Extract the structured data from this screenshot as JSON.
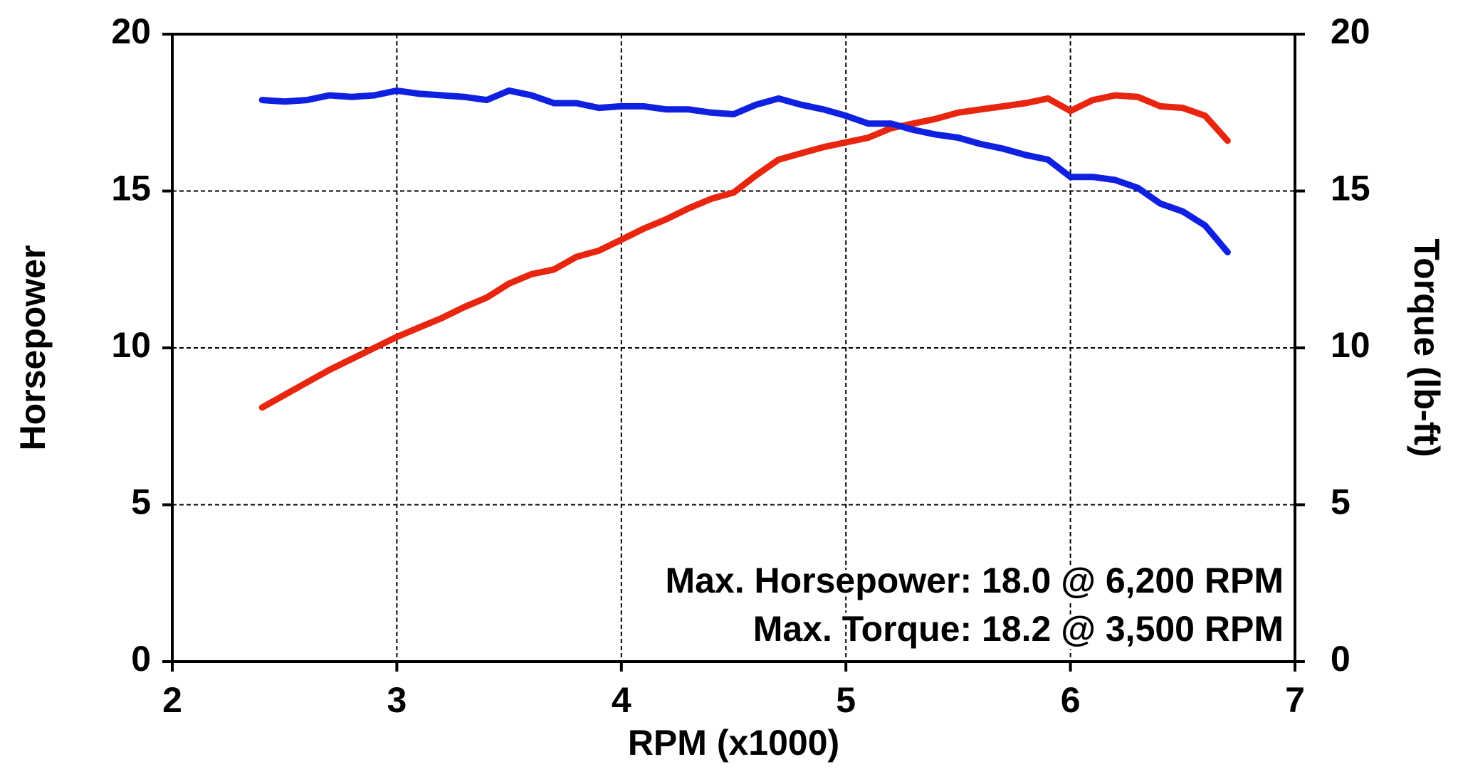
{
  "chart_data": {
    "type": "line",
    "x_label": "RPM (x1000)",
    "y_label": "Horsepower",
    "y2_label": "Torque (lb-ft)",
    "annotations": [
      "Max. Horsepower: 18.0 @ 6,200 RPM",
      "Max. Torque: 18.2 @ 3,500 RPM"
    ],
    "x": [
      2.4,
      2.5,
      2.6,
      2.7,
      2.8,
      2.9,
      3.0,
      3.1,
      3.2,
      3.3,
      3.4,
      3.5,
      3.6,
      3.7,
      3.8,
      3.9,
      4.0,
      4.1,
      4.2,
      4.3,
      4.4,
      4.5,
      4.6,
      4.7,
      4.8,
      4.9,
      5.0,
      5.1,
      5.2,
      5.3,
      5.4,
      5.5,
      5.6,
      5.7,
      5.8,
      5.9,
      6.0,
      6.1,
      6.2,
      6.3,
      6.4,
      6.5,
      6.6,
      6.7
    ],
    "series": [
      {
        "name": "Horsepower",
        "color": "#e8260f",
        "values": [
          8.1,
          8.5,
          8.9,
          9.3,
          9.65,
          10.0,
          10.35,
          10.65,
          10.95,
          11.3,
          11.6,
          12.05,
          12.35,
          12.5,
          12.9,
          13.1,
          13.45,
          13.8,
          14.1,
          14.45,
          14.75,
          14.95,
          15.5,
          16.0,
          16.2,
          16.4,
          16.55,
          16.7,
          17.0,
          17.15,
          17.3,
          17.5,
          17.6,
          17.7,
          17.8,
          17.95,
          17.55,
          17.9,
          18.05,
          18.0,
          17.7,
          17.65,
          17.4,
          16.6
        ]
      },
      {
        "name": "Torque",
        "color": "#1020e0",
        "axis": "y2",
        "values": [
          17.9,
          17.85,
          17.9,
          18.05,
          18.0,
          18.05,
          18.2,
          18.1,
          18.05,
          18.0,
          17.9,
          18.2,
          18.05,
          17.8,
          17.8,
          17.65,
          17.7,
          17.7,
          17.6,
          17.6,
          17.5,
          17.45,
          17.75,
          17.95,
          17.75,
          17.6,
          17.4,
          17.15,
          17.15,
          16.95,
          16.8,
          16.7,
          16.5,
          16.35,
          16.15,
          16.0,
          15.45,
          15.45,
          15.35,
          15.1,
          14.6,
          14.35,
          13.9,
          13.05
        ]
      }
    ],
    "xlim": [
      2,
      7
    ],
    "xticks": [
      2,
      3,
      4,
      5,
      6,
      7
    ],
    "ylim": [
      0,
      20
    ],
    "yticks": [
      0,
      5,
      10,
      15,
      20
    ],
    "y2lim": [
      0,
      20
    ],
    "y2ticks": [
      0,
      5,
      10,
      15,
      20
    ],
    "grid": true
  }
}
